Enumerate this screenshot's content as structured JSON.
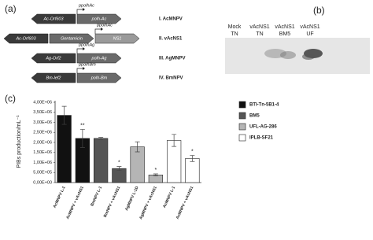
{
  "panels": {
    "a": {
      "label": "(a)",
      "rows": [
        {
          "genes": [
            "Ac-Orf603",
            "polh-Ac"
          ],
          "promoter": "ppolhAc",
          "name": "I. AcMNPV"
        },
        {
          "genes": [
            "Ac-Orf603",
            "Gentamicin",
            "NS1"
          ],
          "promoter": "ppolhAc",
          "name": "II. vAcNS1"
        },
        {
          "genes": [
            "Ag-Orf2",
            "polh-Ag"
          ],
          "promoter": "ppolhAg",
          "name": "III. AgMNPV"
        },
        {
          "genes": [
            "Bm-lef2",
            "polh-Bm"
          ],
          "promoter": "ppolhBm",
          "name": "IV. BmNPV"
        }
      ]
    },
    "b": {
      "label": "(b)",
      "lanes": [
        {
          "top": "Mock",
          "bottom": "TN"
        },
        {
          "top": "vAcNS1",
          "bottom": "TN"
        },
        {
          "top": "vAcNS1",
          "bottom": "BM5"
        },
        {
          "top": "vAcNS1",
          "bottom": "UF"
        }
      ]
    },
    "c": {
      "label": "(c)"
    }
  },
  "chart_data": {
    "type": "bar",
    "y_label": "PIBs production/mL⁻¹",
    "categories": [
      "AcMNPV L-1",
      "AcMNPV + vAcNS1",
      "BmNPV L-1",
      "BmNPV + vAcNS1",
      "AgMNPV L-1D",
      "AgMNPV + vAcNS1",
      "AcMNPV L-1",
      "AcMNPV + vAcNS1"
    ],
    "series": [
      {
        "name": "BTI-Tn-5B1-4",
        "color": "#111111",
        "values": [
          3350000,
          2200000,
          null,
          null,
          null,
          null,
          null,
          null
        ],
        "errors": [
          450000,
          450000,
          null,
          null,
          null,
          null,
          null,
          null
        ],
        "significance": [
          null,
          "**",
          null,
          null,
          null,
          null,
          null,
          null
        ]
      },
      {
        "name": "BM5",
        "color": "#555555",
        "values": [
          null,
          null,
          2200000,
          700000,
          null,
          null,
          null,
          null
        ],
        "errors": [
          null,
          null,
          50000,
          100000,
          null,
          null,
          null,
          null
        ],
        "significance": [
          null,
          null,
          null,
          "*",
          null,
          null,
          null,
          null
        ]
      },
      {
        "name": "UFL-AG-286",
        "color": "#b5b5b5",
        "values": [
          null,
          null,
          null,
          null,
          1780000,
          380000,
          null,
          null
        ],
        "errors": [
          null,
          null,
          null,
          null,
          250000,
          50000,
          null,
          null
        ],
        "significance": [
          null,
          null,
          null,
          null,
          null,
          "*",
          null,
          null
        ]
      },
      {
        "name": "IPLB-SF21",
        "color": "#ffffff",
        "values": [
          null,
          null,
          null,
          null,
          null,
          null,
          2100000,
          1200000
        ],
        "errors": [
          null,
          null,
          null,
          null,
          null,
          null,
          300000,
          150000
        ],
        "significance": [
          null,
          null,
          null,
          null,
          null,
          null,
          null,
          "*"
        ]
      }
    ],
    "ylim": [
      0,
      4000000
    ],
    "yticks": [
      {
        "value": 0,
        "label": "0,00E+00"
      },
      {
        "value": 500000,
        "label": "5,00E+05"
      },
      {
        "value": 1000000,
        "label": "1,00E+06"
      },
      {
        "value": 1500000,
        "label": "1,50E+06"
      },
      {
        "value": 2000000,
        "label": "2,00E+06"
      },
      {
        "value": 2500000,
        "label": "2,50E+06"
      },
      {
        "value": 3000000,
        "label": "3,00E+06"
      },
      {
        "value": 3500000,
        "label": "3,50E+06"
      },
      {
        "value": 4000000,
        "label": "4,00E+06"
      }
    ],
    "grid": false,
    "legend": "right"
  }
}
